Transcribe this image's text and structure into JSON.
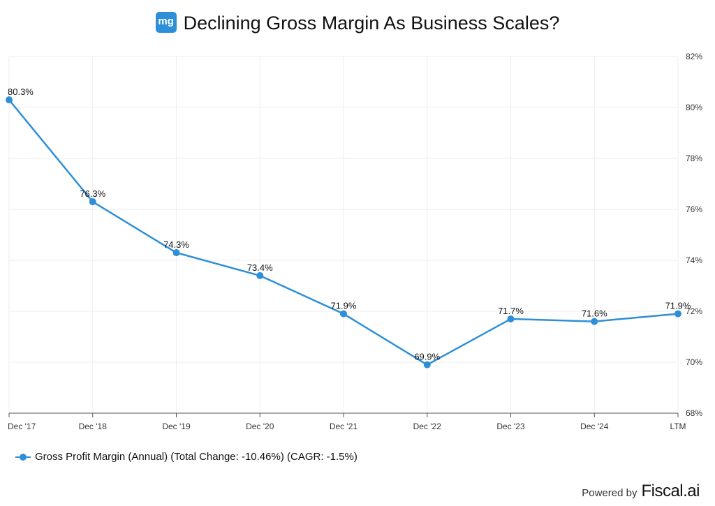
{
  "title": "Declining Gross Margin As Business Scales?",
  "logo_text": "mg",
  "footer": {
    "powered_by": "Powered by",
    "brand": "Fiscal.ai"
  },
  "colors": {
    "series": "#2e8fd8",
    "grid": "#eeeeee"
  },
  "chart_data": {
    "type": "line",
    "title": "Declining Gross Margin As Business Scales?",
    "categories": [
      "Dec '17",
      "Dec '18",
      "Dec '19",
      "Dec '20",
      "Dec '21",
      "Dec '22",
      "Dec '23",
      "Dec '24",
      "LTM"
    ],
    "series": [
      {
        "name": "Gross Profit Margin (Annual) (Total Change: -10.46%) (CAGR: -1.5%)",
        "values": [
          80.3,
          76.3,
          74.3,
          73.4,
          71.9,
          69.9,
          71.7,
          71.6,
          71.9
        ],
        "labels": [
          "80.3%",
          "76.3%",
          "74.3%",
          "73.4%",
          "71.9%",
          "69.9%",
          "71.7%",
          "71.6%",
          "71.9%"
        ]
      }
    ],
    "ylim": [
      68,
      82
    ],
    "yticks": [
      "68%",
      "70%",
      "72%",
      "74%",
      "76%",
      "78%",
      "80%",
      "82%"
    ],
    "y_axis_side": "right",
    "grid": true,
    "legend": "bottom-left"
  }
}
